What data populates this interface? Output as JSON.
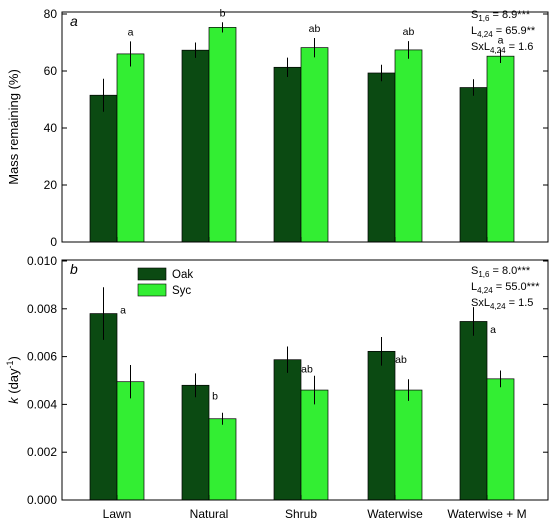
{
  "chart_data": [
    {
      "type": "bar",
      "panel_label": "a",
      "categories": [
        "Lawn",
        "Natural",
        "Shrub",
        "Waterwise",
        "Waterwise + M"
      ],
      "series": [
        {
          "name": "Oak",
          "color": "#0b4a12",
          "values": [
            51.5,
            67.3,
            61.3,
            59.3,
            54.2
          ],
          "errors": [
            5.8,
            2.7,
            3.4,
            2.9,
            2.9
          ]
        },
        {
          "name": "Syc",
          "color": "#33ee33",
          "values": [
            66.0,
            75.3,
            68.2,
            67.4,
            65.2
          ],
          "errors": [
            4.4,
            1.8,
            3.4,
            3.1,
            2.4
          ]
        }
      ],
      "group_letters": [
        "a",
        "b",
        "ab",
        "ab",
        "a"
      ],
      "ylabel": "Mass remaining (%)",
      "ylim": [
        0,
        80
      ],
      "yticks": [
        "0",
        "20",
        "40",
        "60",
        "80"
      ],
      "stats": {
        "line1": {
          "pre": "S",
          "sub": "1,6",
          "post": " = 8.9***"
        },
        "line2": {
          "pre": "L",
          "sub": "4,24",
          "post": " = 65.9**"
        },
        "line3": {
          "pre": "SxL",
          "sub": "4,24",
          "post": " = 1.6"
        }
      }
    },
    {
      "type": "bar",
      "panel_label": "b",
      "categories": [
        "Lawn",
        "Natural",
        "Shrub",
        "Waterwise",
        "Waterwise + M"
      ],
      "series": [
        {
          "name": "Oak",
          "color": "#0b4a12",
          "values": [
            0.0078,
            0.0048,
            0.00587,
            0.00622,
            0.00747
          ],
          "errors": [
            0.0011,
            0.0005,
            0.00055,
            0.0006,
            0.0006
          ]
        },
        {
          "name": "Syc",
          "color": "#33ee33",
          "values": [
            0.00495,
            0.0034,
            0.0046,
            0.0046,
            0.00507
          ],
          "errors": [
            0.0007,
            0.00025,
            0.0006,
            0.00045,
            0.00035
          ]
        }
      ],
      "group_letters": [
        "a",
        "b",
        "ab",
        "ab",
        "a"
      ],
      "ylabel": {
        "k": "k",
        "unit_open": " (day",
        "exp": "-1",
        "unit_close": ")"
      },
      "ylim": [
        0,
        0.01
      ],
      "yticks": [
        "0.000",
        "0.002",
        "0.004",
        "0.006",
        "0.008",
        "0.010"
      ],
      "legend": {
        "position": "top-left",
        "items": [
          "Oak",
          "Syc"
        ]
      },
      "stats": {
        "line1": {
          "pre": "S",
          "sub": "1,6",
          "post": " = 8.0***"
        },
        "line2": {
          "pre": "L",
          "sub": "4,24",
          "post": " = 55.0***"
        },
        "line3": {
          "pre": "SxL",
          "sub": "4,24",
          "post": " = 1.5"
        }
      }
    }
  ]
}
